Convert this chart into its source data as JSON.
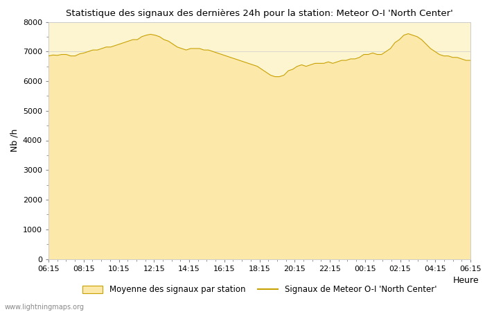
{
  "title": "Statistique des signaux des dernières 24h pour la station: Meteor O-I 'North Center'",
  "xlabel": "Heure",
  "ylabel": "Nb /h",
  "watermark": "www.lightningmaps.org",
  "x_ticks": [
    "06:15",
    "08:15",
    "10:15",
    "12:15",
    "14:15",
    "16:15",
    "18:15",
    "20:15",
    "22:15",
    "00:15",
    "02:15",
    "04:15",
    "06:15"
  ],
  "ylim": [
    0,
    8000
  ],
  "yticks": [
    0,
    1000,
    2000,
    3000,
    4000,
    5000,
    6000,
    7000,
    8000
  ],
  "bg_color": "#ffffff",
  "plot_bg_color": "#fdf5d0",
  "fill_color": "#fce8a8",
  "line_color": "#c8a000",
  "legend_fill_label": "Moyenne des signaux par station",
  "legend_line_label": "Signaux de Meteor O-I 'North Center'",
  "x_values": [
    0,
    1,
    2,
    3,
    4,
    5,
    6,
    7,
    8,
    9,
    10,
    11,
    12,
    13,
    14,
    15,
    16,
    17,
    18,
    19,
    20,
    21,
    22,
    23,
    24,
    25,
    26,
    27,
    28,
    29,
    30,
    31,
    32,
    33,
    34,
    35,
    36,
    37,
    38,
    39,
    40,
    41,
    42,
    43,
    44,
    45,
    46,
    47,
    48,
    49,
    50,
    51,
    52,
    53,
    54,
    55,
    56,
    57,
    58,
    59,
    60,
    61,
    62,
    63,
    64,
    65,
    66,
    67,
    68,
    69,
    70,
    71,
    72,
    73,
    74,
    75,
    76,
    77,
    78,
    79,
    80,
    81,
    82,
    83,
    84,
    85,
    86,
    87,
    88,
    89,
    90,
    91,
    92,
    93,
    94,
    95
  ],
  "mean_values": [
    6850,
    6880,
    6870,
    6900,
    6900,
    6850,
    6850,
    6920,
    6950,
    7000,
    7050,
    7050,
    7100,
    7150,
    7150,
    7200,
    7250,
    7300,
    7350,
    7400,
    7400,
    7500,
    7550,
    7580,
    7550,
    7500,
    7400,
    7350,
    7250,
    7150,
    7100,
    7050,
    7100,
    7100,
    7100,
    7050,
    7050,
    7000,
    6950,
    6900,
    6850,
    6800,
    6750,
    6700,
    6650,
    6600,
    6550,
    6500,
    6400,
    6300,
    6200,
    6150,
    6150,
    6200,
    6350,
    6400,
    6500,
    6550,
    6500,
    6550,
    6600,
    6600,
    6600,
    6650,
    6600,
    6650,
    6700,
    6700,
    6750,
    6750,
    6800,
    6900,
    6900,
    6950,
    6900,
    6900,
    7000,
    7100,
    7300,
    7400,
    7550,
    7600,
    7550,
    7500,
    7400,
    7250,
    7100,
    7000,
    6900,
    6850,
    6850,
    6800,
    6800,
    6750,
    6700,
    6700
  ],
  "station_values": [
    6850,
    6880,
    6870,
    6900,
    6900,
    6850,
    6850,
    6920,
    6950,
    7000,
    7050,
    7050,
    7100,
    7150,
    7150,
    7200,
    7250,
    7300,
    7350,
    7400,
    7400,
    7500,
    7550,
    7580,
    7550,
    7500,
    7400,
    7350,
    7250,
    7150,
    7100,
    7050,
    7100,
    7100,
    7100,
    7050,
    7050,
    7000,
    6950,
    6900,
    6850,
    6800,
    6750,
    6700,
    6650,
    6600,
    6550,
    6500,
    6400,
    6300,
    6200,
    6150,
    6150,
    6200,
    6350,
    6400,
    6500,
    6550,
    6500,
    6550,
    6600,
    6600,
    6600,
    6650,
    6600,
    6650,
    6700,
    6700,
    6750,
    6750,
    6800,
    6900,
    6900,
    6950,
    6900,
    6900,
    7000,
    7100,
    7300,
    7400,
    7550,
    7600,
    7550,
    7500,
    7400,
    7250,
    7100,
    7000,
    6900,
    6850,
    6850,
    6800,
    6800,
    6750,
    6700,
    6700
  ]
}
